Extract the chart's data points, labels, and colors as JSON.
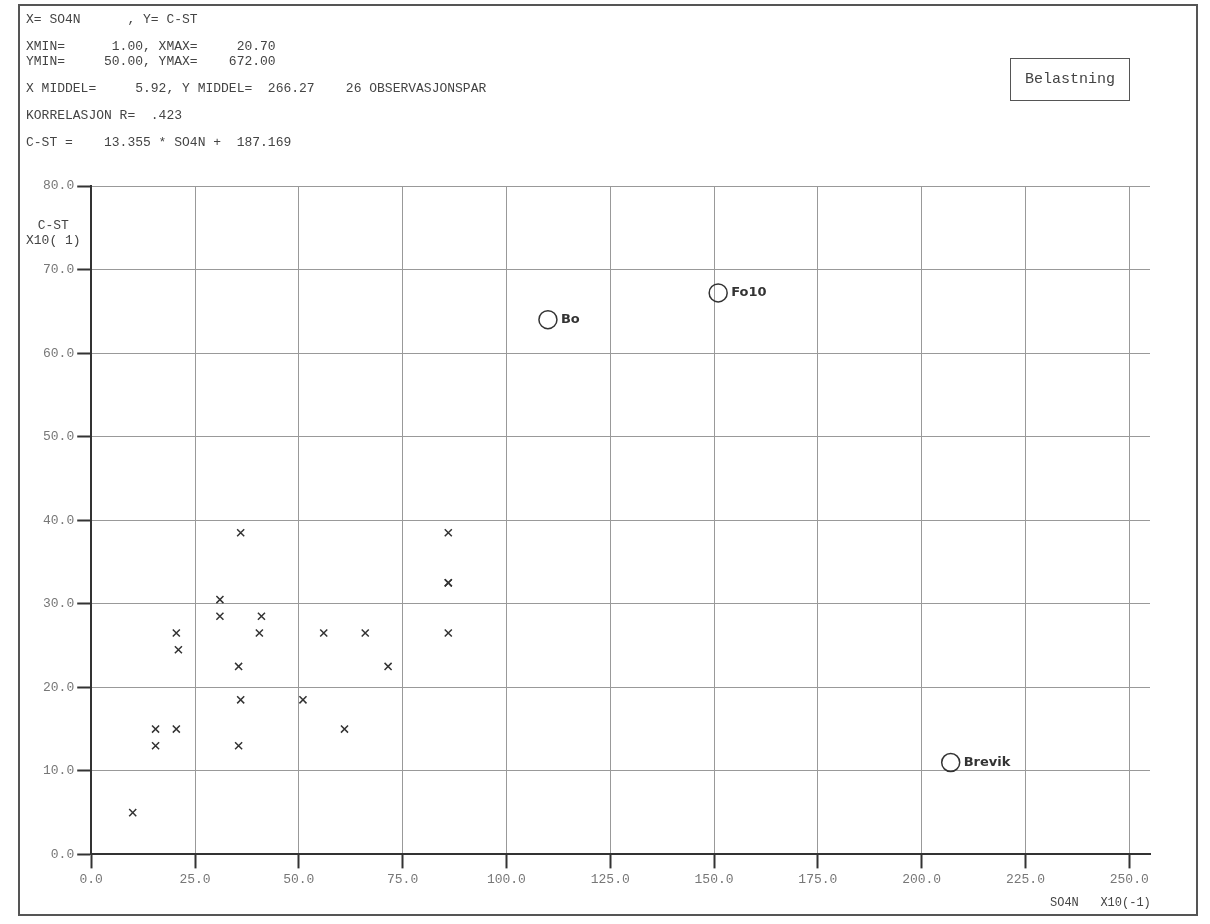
{
  "chart_data": {
    "type": "scatter",
    "title": "X= SO4N      , Y= C-ST",
    "xlabel": "SO4N   X10(-1)",
    "ylabel": "C-ST\nX10( 1)",
    "annotations": [
      "XMIN=      1.00, XMAX=     20.70\nYMIN=     50.00, YMAX=    672.00",
      "X MIDDEL=     5.92, Y MIDDEL=  266.27    26 OBSERVASJONSPAR",
      "KORRELASJON R=  .423",
      "C-ST =    13.355 * SO4N +  187.169",
      {
        "text": "Bo",
        "x": 110,
        "y": 64
      },
      {
        "text": "Fo10",
        "x": 151,
        "y": 67.2
      },
      {
        "text": "Brevik",
        "x": 207,
        "y": 11
      },
      "Belastning"
    ],
    "xlim": [
      0,
      255
    ],
    "ylim": [
      0,
      80
    ],
    "xticks": [
      {
        "value": 0,
        "label": "0.0"
      },
      {
        "value": 25,
        "label": "25.0"
      },
      {
        "value": 50,
        "label": "50.0"
      },
      {
        "value": 75,
        "label": "75.0"
      },
      {
        "value": 100,
        "label": "100.0"
      },
      {
        "value": 125,
        "label": "125.0"
      },
      {
        "value": 150,
        "label": "150.0"
      },
      {
        "value": 175,
        "label": "175.0"
      },
      {
        "value": 200,
        "label": "200.0"
      },
      {
        "value": 225,
        "label": "225.0"
      },
      {
        "value": 250,
        "label": "250.0"
      }
    ],
    "yticks": [
      {
        "value": 0,
        "label": "0.0"
      },
      {
        "value": 10,
        "label": "10.0"
      },
      {
        "value": 20,
        "label": "20.0"
      },
      {
        "value": 30,
        "label": "30.0"
      },
      {
        "value": 40,
        "label": "40.0"
      },
      {
        "value": 50,
        "label": "50.0"
      },
      {
        "value": 60,
        "label": "60.0"
      },
      {
        "value": 70,
        "label": "70.0"
      },
      {
        "value": 80,
        "label": "80.0"
      }
    ],
    "grid": true,
    "series": [
      {
        "color": "#333333",
        "marker": "cross",
        "x": [
          36,
          86,
          86,
          86,
          31,
          31,
          41,
          20.5,
          40.5,
          56,
          66,
          86,
          21,
          35.5,
          71.5,
          36,
          51,
          15.5,
          20.5,
          61,
          15.5,
          35.5,
          10
        ],
        "values": [
          38.5,
          38.5,
          32.5,
          32.5,
          30.5,
          28.5,
          28.5,
          26.5,
          26.5,
          26.5,
          26.5,
          26.5,
          24.5,
          22.5,
          22.5,
          18.5,
          18.5,
          15,
          15,
          15,
          13,
          13,
          5
        ]
      },
      {
        "color": "#333333",
        "marker": "circle",
        "x": [
          110,
          151,
          207
        ],
        "values": [
          64,
          67.2,
          11
        ]
      }
    ]
  }
}
